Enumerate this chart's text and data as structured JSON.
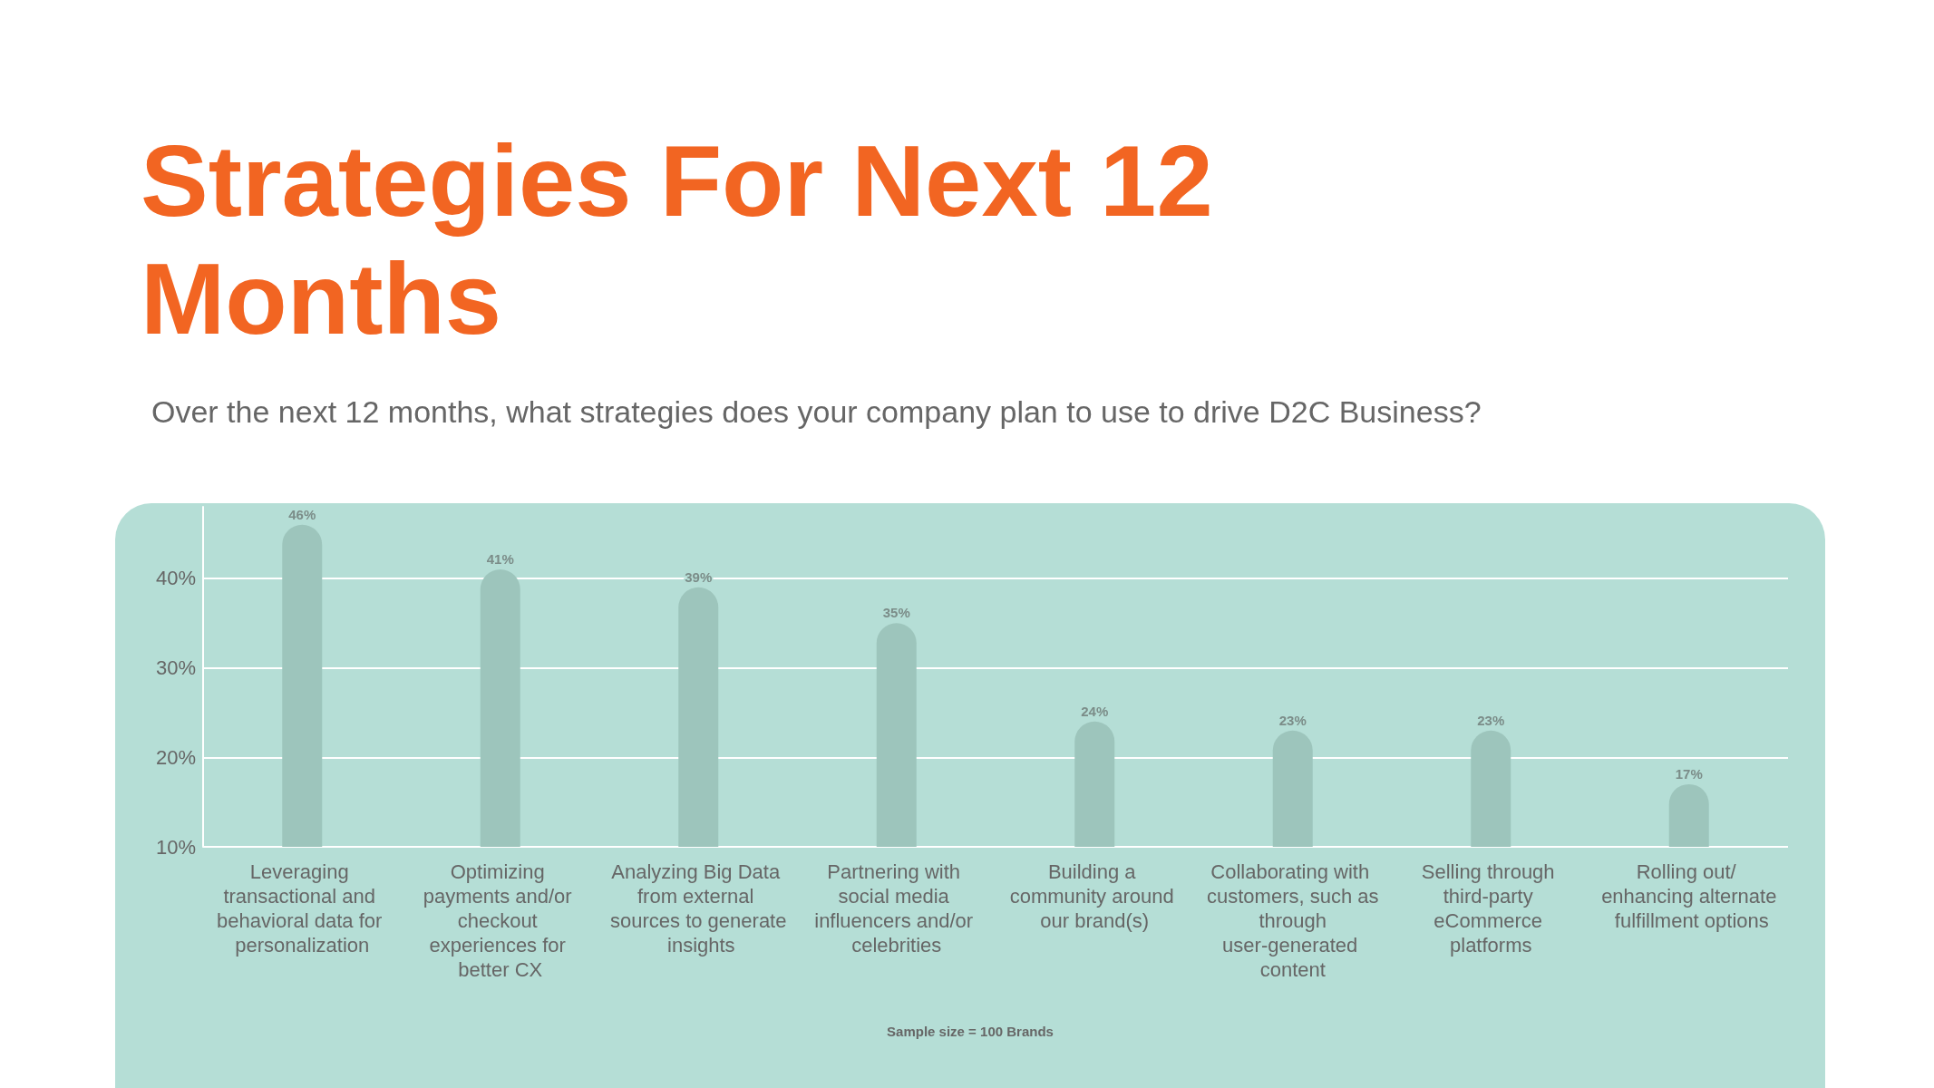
{
  "chart_data": {
    "type": "bar",
    "title": "Strategies For Next 12 Months",
    "subtitle": "Over the next 12 months, what strategies does your company plan to use to drive D2C Business?",
    "categories": [
      "Leveraging transactional and behavioral data for personalization",
      "Optimizing payments and/or checkout experiences for better CX",
      "Analyzing Big Data from external sources to generate insights",
      "Partnering with social media influencers and/or celebrities",
      "Building a community around our brand(s)",
      "Collaborating with customers, such as through user-generated content",
      "Selling through third-party eCommerce platforms",
      "Rolling out/ enhancing alternate fulfillment options"
    ],
    "values": [
      46,
      41,
      39,
      35,
      24,
      23,
      23,
      17
    ],
    "value_labels": [
      "46%",
      "41%",
      "39%",
      "35%",
      "24%",
      "23%",
      "23%",
      "17%"
    ],
    "color": "#9dc5bc",
    "yticks": [
      {
        "value": 10,
        "label": "10%"
      },
      {
        "value": 20,
        "label": "20%"
      },
      {
        "value": 30,
        "label": "30%"
      },
      {
        "value": 40,
        "label": "40%"
      }
    ],
    "ylim": [
      10,
      48
    ],
    "grid": "y",
    "annotations": [
      "Sample size = 100 Brands"
    ]
  }
}
